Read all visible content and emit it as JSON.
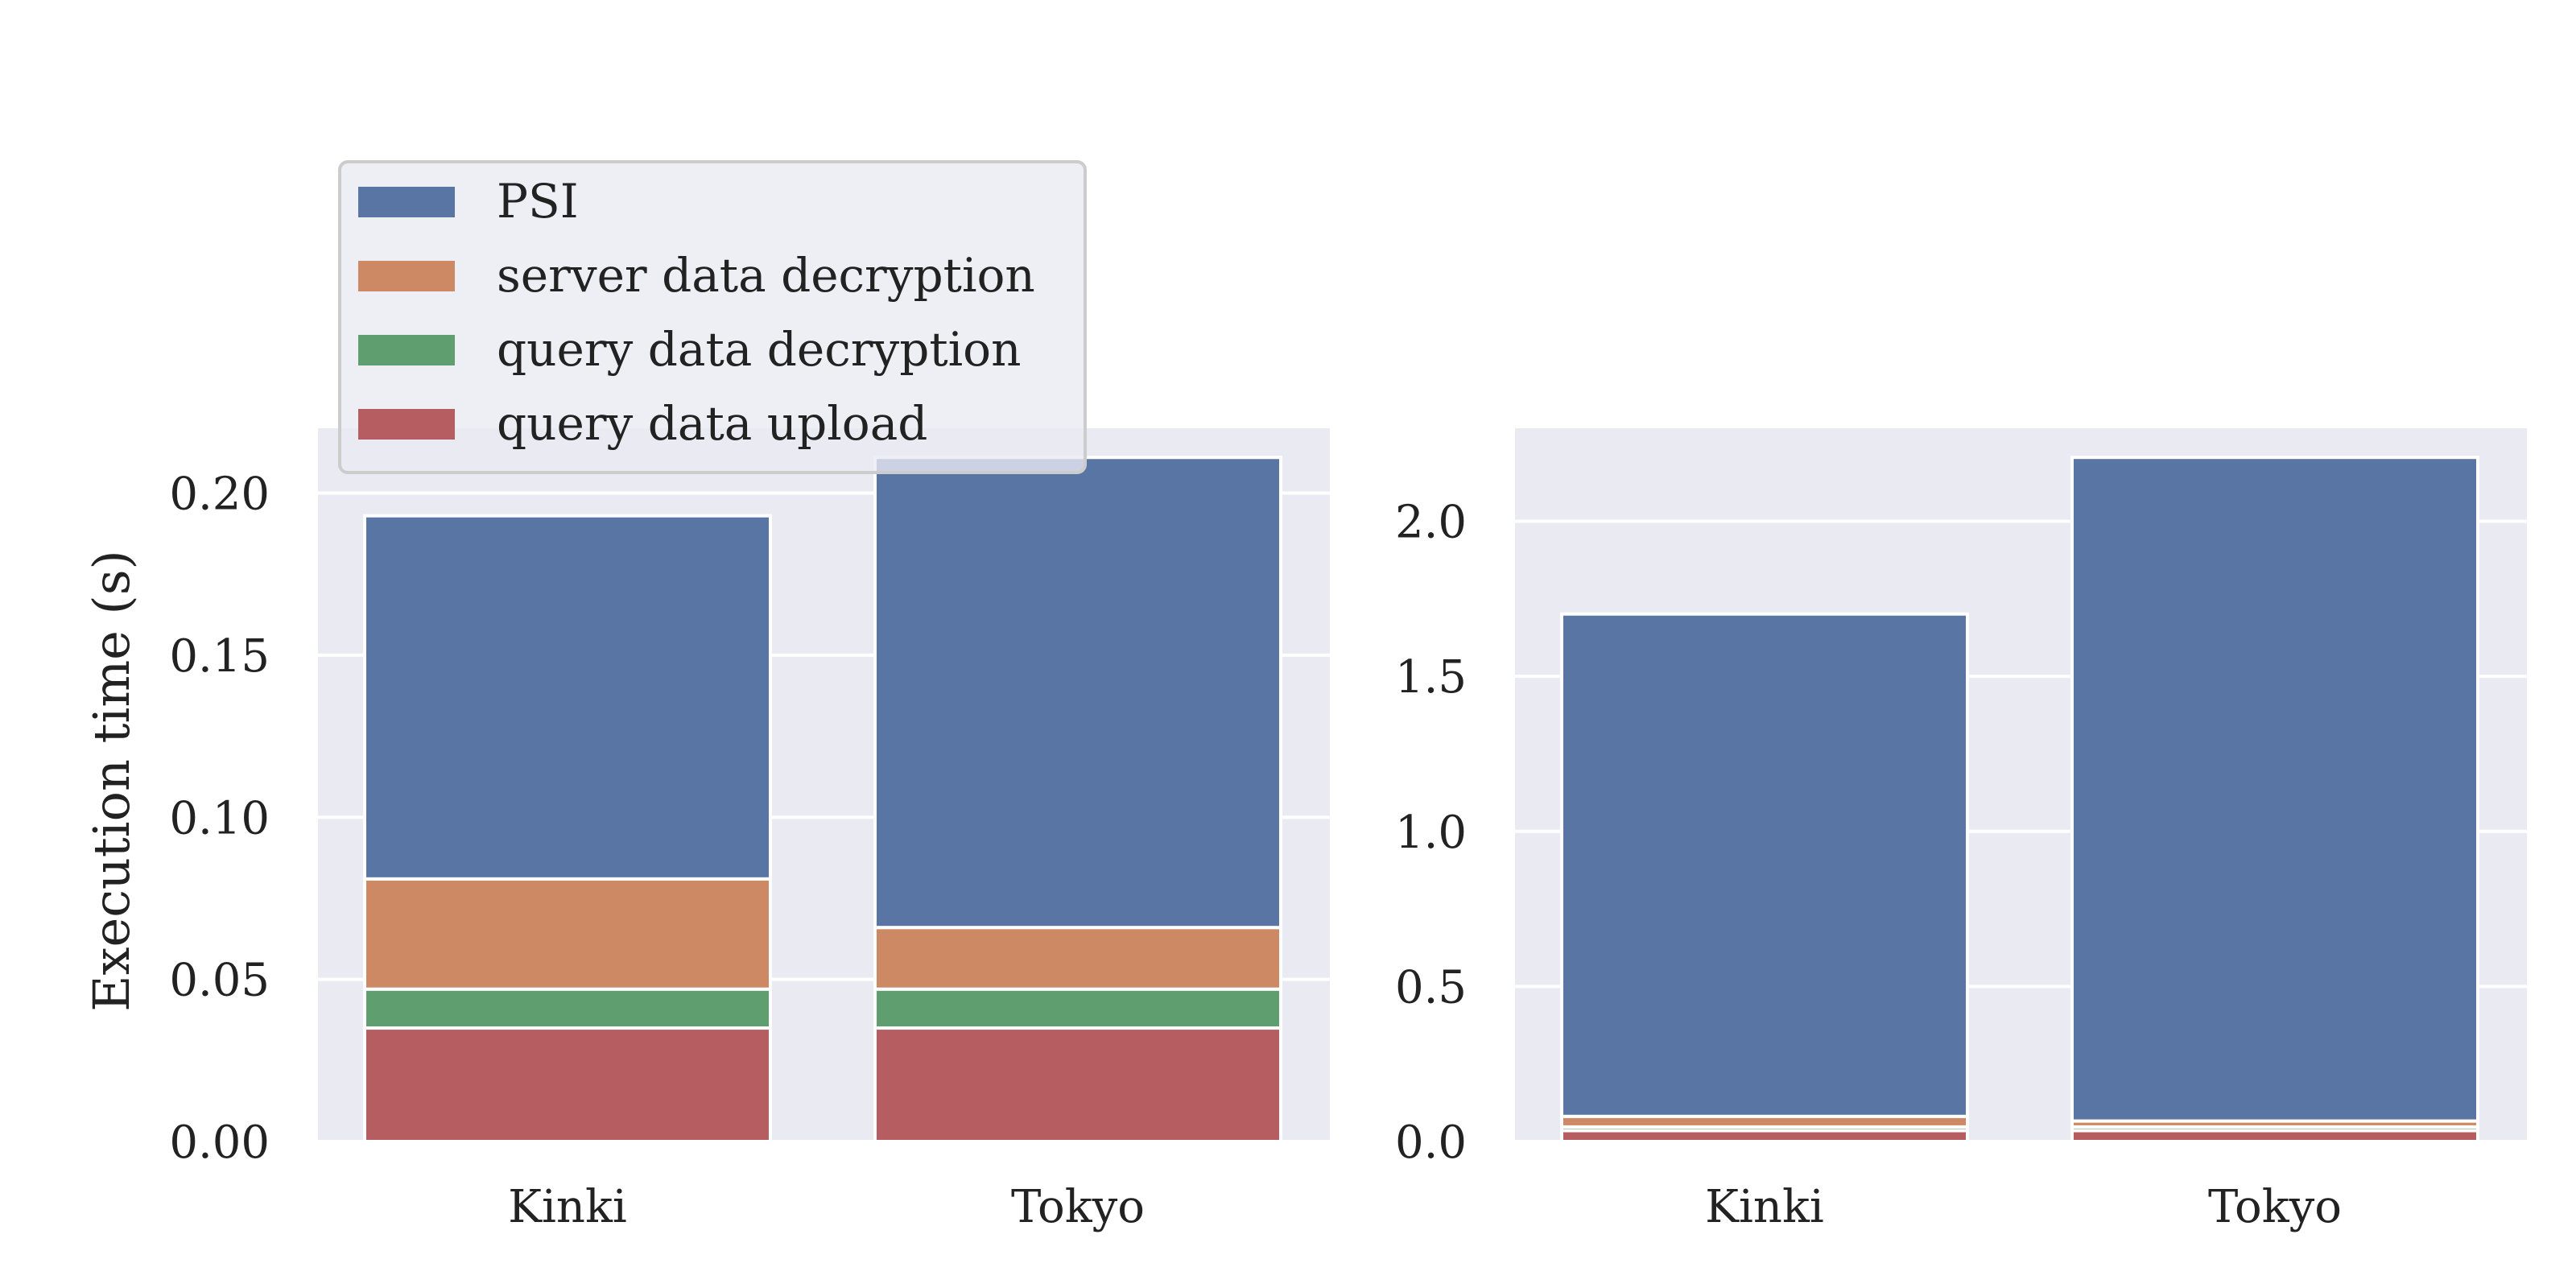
{
  "chart_data": [
    {
      "type": "bar",
      "stacked": true,
      "categories": [
        "Kinki",
        "Tokyo"
      ],
      "ylabel": "Execution time (s)",
      "xlabel": "",
      "ylim": [
        0,
        0.22
      ],
      "yticks": [
        "0.00",
        "0.05",
        "0.10",
        "0.15",
        "0.20"
      ],
      "grid": true,
      "legend": "top-left, above axes",
      "series": [
        {
          "name": "query data upload",
          "values": [
            0.035,
            0.035
          ]
        },
        {
          "name": "query data decryption",
          "values": [
            0.012,
            0.012
          ]
        },
        {
          "name": "server data decryption",
          "values": [
            0.034,
            0.019
          ]
        },
        {
          "name": "PSI",
          "values": [
            0.112,
            0.145
          ]
        }
      ]
    },
    {
      "type": "bar",
      "stacked": true,
      "categories": [
        "Kinki",
        "Tokyo"
      ],
      "ylabel": "",
      "xlabel": "",
      "ylim": [
        0,
        2.3
      ],
      "yticks": [
        "0.0",
        "0.5",
        "1.0",
        "1.5",
        "2.0"
      ],
      "grid": true,
      "series": [
        {
          "name": "query data upload",
          "values": [
            0.035,
            0.035
          ]
        },
        {
          "name": "query data decryption",
          "values": [
            0.012,
            0.012
          ]
        },
        {
          "name": "server data decryption",
          "values": [
            0.034,
            0.019
          ]
        },
        {
          "name": "PSI",
          "values": [
            1.62,
            2.14
          ]
        }
      ]
    }
  ],
  "legend": {
    "entries": [
      "PSI",
      "server data decryption",
      "query data decryption",
      "query data upload"
    ]
  },
  "colors": {
    "PSI": "#5875a4",
    "server data decryption": "#cc8963",
    "query data decryption": "#5f9e6e",
    "query data upload": "#b55d60",
    "axes_bg": "#eaeaf2",
    "grid": "#ffffff"
  }
}
